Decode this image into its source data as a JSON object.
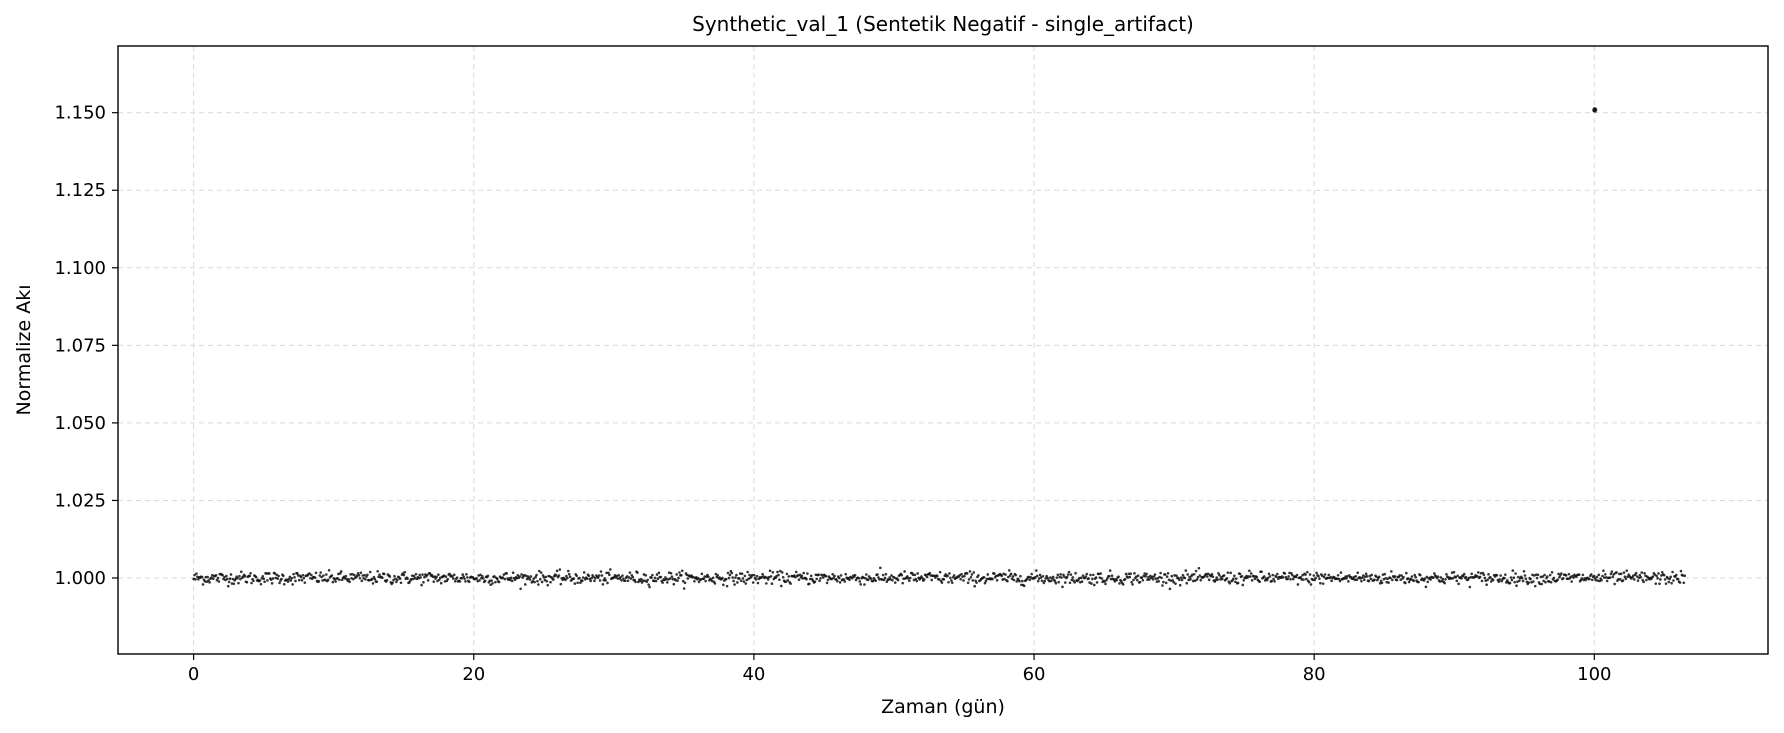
{
  "chart_data": {
    "type": "scatter",
    "title": "Synthetic_val_1 (Sentetik Negatif - single_artifact)",
    "xlabel": "Zaman (gün)",
    "ylabel": "Normalize Akı",
    "xlim": [
      -5.4,
      112.4
    ],
    "ylim": [
      0.9755,
      1.1715
    ],
    "xticks": [
      0,
      20,
      40,
      60,
      80,
      100
    ],
    "xtick_labels": [
      "0",
      "20",
      "40",
      "60",
      "80",
      "100"
    ],
    "yticks": [
      1.0,
      1.025,
      1.05,
      1.075,
      1.1,
      1.125,
      1.15
    ],
    "ytick_labels": [
      "1.000",
      "1.025",
      "1.050",
      "1.075",
      "1.100",
      "1.125",
      "1.150"
    ],
    "grid": true,
    "legend": "none",
    "baseline": {
      "x_start": 0.0,
      "x_end": 106.5,
      "cadence": 0.0667,
      "flux_center": 1.0,
      "flux_spread": 0.001
    },
    "artifact": {
      "x": [
        99.98,
        100.02,
        100.05,
        100.08
      ],
      "y": [
        1.1508,
        1.1512,
        1.1506,
        1.151
      ]
    },
    "color": "#111111"
  }
}
